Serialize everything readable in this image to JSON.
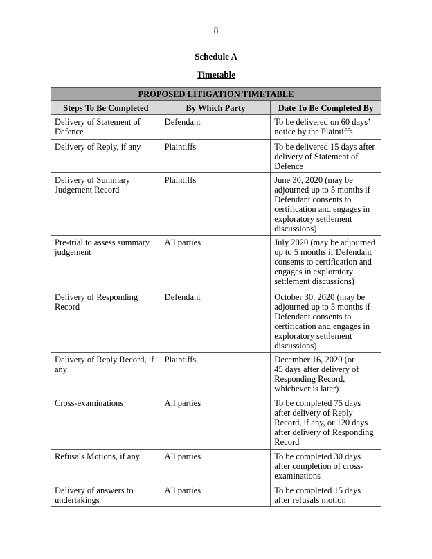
{
  "page_number": "8",
  "schedule": "Schedule A",
  "title": "Timetable",
  "table": {
    "caption": "PROPOSED LITIGATION TIMETABLE",
    "headers": [
      "Steps To Be Completed",
      "By Which Party",
      "Date To Be Completed By"
    ],
    "rows": [
      [
        "Delivery of Statement of\nDefence",
        "Defendant",
        "To be delivered on 60 days’\nnotice by the Plaintiffs"
      ],
      [
        "Delivery of Reply, if any",
        "Plaintiffs",
        "To be delivered 15 days after\ndelivery of Statement of\nDefence"
      ],
      [
        "Delivery of Summary\nJudgement Record",
        "Plaintiffs",
        "June 30, 2020 (may be\nadjourned up to 5 months if\nDefendant consents to\ncertification and engages in\nexploratory settlement\ndiscussions)"
      ],
      [
        "Pre-trial to assess summary\njudgement",
        "All parties",
        "July 2020 (may be adjourned\nup to 5 months if Defendant\nconsents to certification and\nengages in exploratory\nsettlement discussions)"
      ],
      [
        "Delivery of Responding\nRecord",
        "Defendant",
        "October 30, 2020 (may be\nadjourned up to 5 months if\nDefendant consents to\ncertification and engages in\nexploratory settlement\ndiscussions)"
      ],
      [
        "Delivery of Reply Record, if\nany",
        "Plaintiffs",
        "December 16, 2020 (or\n45 days after delivery of\nResponding Record,\nwhichever is later)"
      ],
      [
        "Cross-examinations",
        "All parties",
        "To be completed 75 days\nafter delivery of Reply\nRecord, if any, or 120 days\nafter delivery of Responding\nRecord"
      ],
      [
        "Refusals Motions, if any",
        "All parties",
        "To be completed 30 days\nafter completion of cross-\nexaminations"
      ],
      [
        "Delivery of answers to\nundertakings",
        "All parties",
        "To be completed 15 days\nafter refusals motion"
      ]
    ]
  }
}
